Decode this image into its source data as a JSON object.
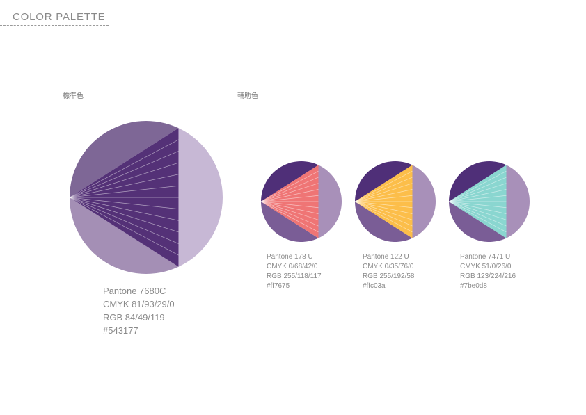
{
  "header": {
    "title": "COLOR PALETTE"
  },
  "primary": {
    "label": "標準色",
    "swatch": {
      "name": "Pantone 7680C",
      "cmyk": "CMYK 81/93/29/0",
      "rgb": "RGB 84/49/119",
      "hex": "#543177"
    },
    "colors": {
      "upper": "#7e6796",
      "lower": "#a48fb5",
      "right": "#c7b8d5",
      "triangle": "#543177"
    }
  },
  "secondary": {
    "label": "輔助色",
    "base_colors": {
      "upper": "#4f2f78",
      "lower": "#7a5d96",
      "right": "#a890b9"
    },
    "swatches": [
      {
        "name": "Pantone 178 U",
        "cmyk": "CMYK 0/68/42/0",
        "rgb": "RGB 255/118/117",
        "hex": "#ff7675",
        "color": "#ef7575"
      },
      {
        "name": "Pantone 122 U",
        "cmyk": "CMYK 0/35/76/0",
        "rgb": "RGB 255/192/58",
        "hex": "#ffc03a",
        "color": "#fcbe4a"
      },
      {
        "name": "Pantone 7471 U",
        "cmyk": "CMYK 51/0/26/0",
        "rgb": "RGB 123/224/216",
        "hex": "#7be0d8",
        "color": "#8ad6d0"
      }
    ]
  }
}
